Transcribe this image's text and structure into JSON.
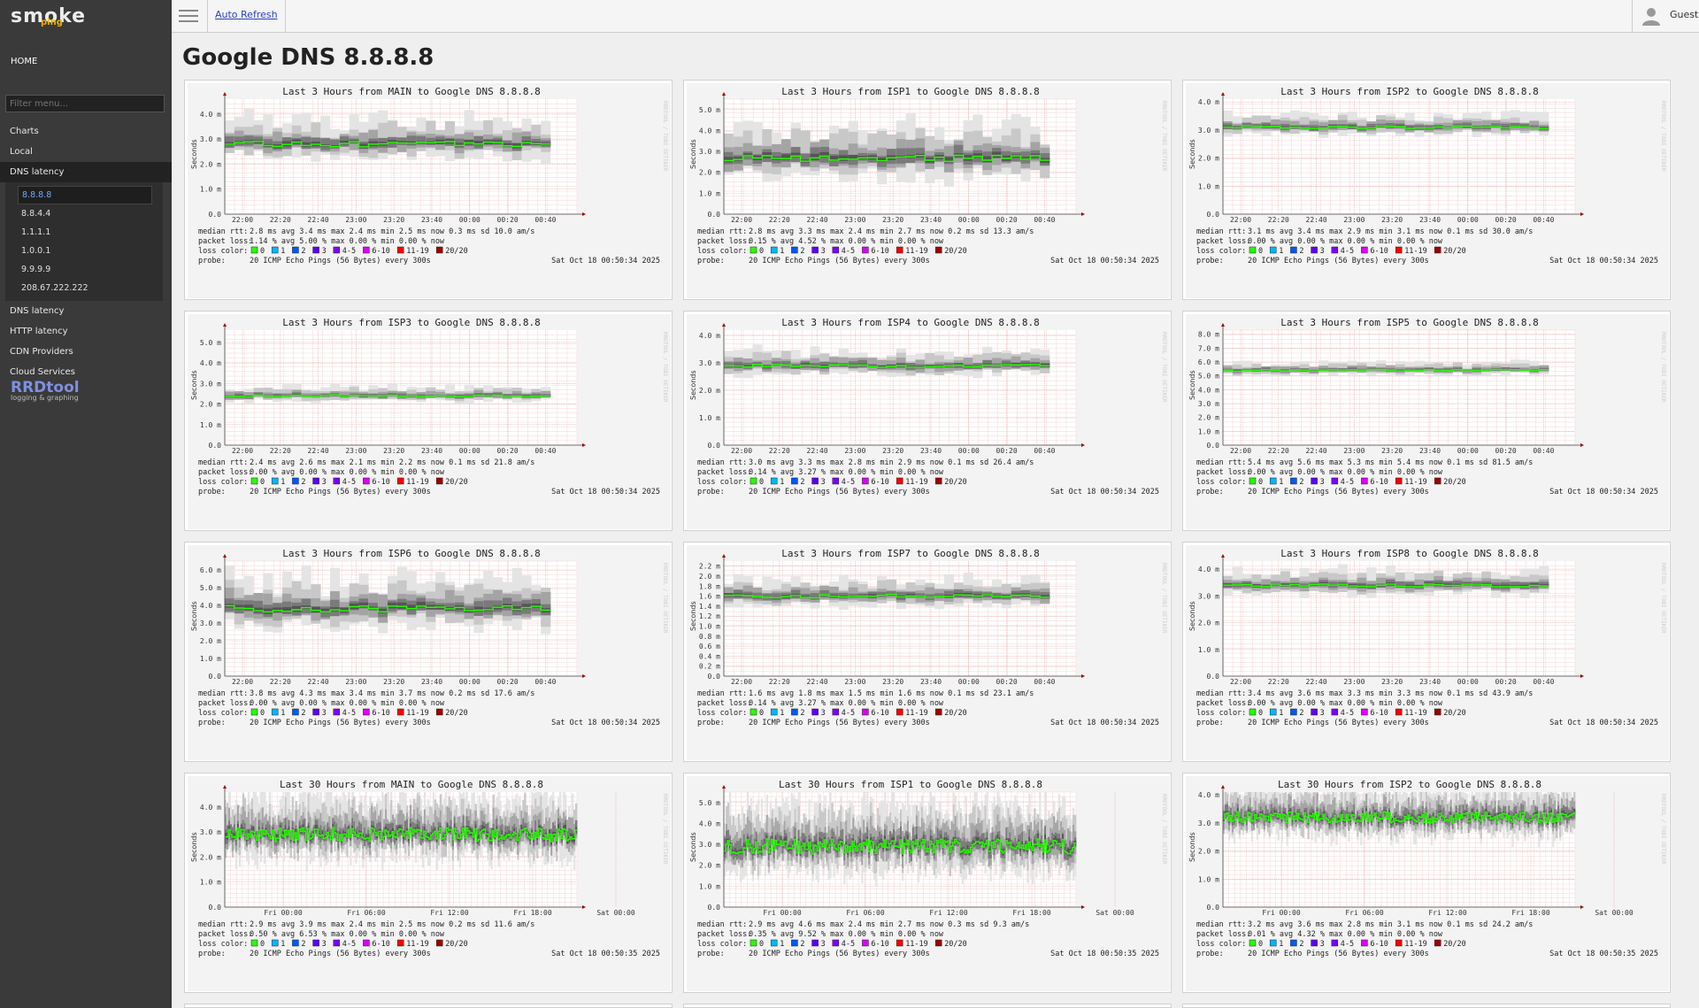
{
  "app": {
    "logo_text": "smoke",
    "logo_sub": "ping"
  },
  "sidebar": {
    "home": "HOME",
    "filter_placeholder": "Filter menu...",
    "items": [
      {
        "label": "Charts"
      },
      {
        "label": "Local"
      },
      {
        "label": "DNS latency",
        "active": true
      }
    ],
    "submenu": [
      "8.8.8.8",
      "8.8.4.4",
      "1.1.1.1",
      "1.0.0.1",
      "9.9.9.9",
      "208.67.222.222"
    ],
    "items_after": [
      {
        "label": "DNS latency"
      },
      {
        "label": "HTTP latency"
      },
      {
        "label": "CDN Providers"
      },
      {
        "label": "Cloud Services"
      }
    ],
    "rrdtool": {
      "title": "RRDtool",
      "sub": "logging & graphing"
    }
  },
  "topbar": {
    "auto_refresh": "Auto Refresh",
    "user": "Guest"
  },
  "page": {
    "title": "Google DNS 8.8.8.8"
  },
  "legend_labels": {
    "median": "median rtt:",
    "loss": "packet loss:",
    "loss_color": "loss color:",
    "probe": "probe:",
    "probe_text": "20 ICMP Echo Pings (56 Bytes) every 300s",
    "ylabel": "Seconds",
    "loss_items": [
      "0",
      "1",
      "2",
      "3",
      "4-5",
      "6-10",
      "11-19",
      "20/20"
    ],
    "loss_colors": [
      "#26ff00",
      "#00b8ff",
      "#0059ff",
      "#5e00ff",
      "#7e00ff",
      "#dd00ff",
      "#ff0000",
      "#a00000"
    ]
  },
  "x_ticks_3h": [
    "22:00",
    "22:20",
    "22:40",
    "23:00",
    "23:20",
    "23:40",
    "00:00",
    "00:20",
    "00:40"
  ],
  "x_ticks_30h": [
    "Fri 00:00",
    "Fri 06:00",
    "Fri 12:00",
    "Fri 18:00",
    "Sat 00:00"
  ],
  "charts": [
    {
      "title": "Last 3 Hours from MAIN to Google DNS 8.8.8.8",
      "yticks": [
        "4.0 m",
        "3.0 m",
        "2.0 m",
        "1.0 m",
        "0.0"
      ],
      "ymax": 4.6,
      "median": 2.8,
      "spread": 0.9,
      "range": "3h",
      "stats1": "2.8 ms avg   3.4 ms max   2.4 ms min   2.5 ms now   0.3 ms sd   10.0   am/s",
      "stats2": "1.14 % avg   5.00 % max   0.00 % min   0.00 % now",
      "date": "Sat Oct 18 00:50:34 2025"
    },
    {
      "title": "Last 3 Hours from ISP1 to Google DNS 8.8.8.8",
      "yticks": [
        "5.0 m",
        "4.0 m",
        "3.0 m",
        "2.0 m",
        "1.0 m",
        "0.0"
      ],
      "ymax": 5.5,
      "median": 2.7,
      "spread": 1.4,
      "range": "3h",
      "stats1": "2.8 ms avg   3.3 ms max   2.4 ms min   2.7 ms now   0.2 ms sd   13.3   am/s",
      "stats2": "0.15 % avg   4.52 % max   0.00 % min   0.00 % now",
      "date": "Sat Oct 18 00:50:34 2025"
    },
    {
      "title": "Last 3 Hours from ISP2 to Google DNS 8.8.8.8",
      "yticks": [
        "4.0 m",
        "3.0 m",
        "2.0 m",
        "1.0 m",
        "0.0"
      ],
      "ymax": 4.1,
      "median": 3.1,
      "spread": 0.4,
      "range": "3h",
      "stats1": "3.1 ms avg   3.4 ms max   2.9 ms min   3.1 ms now   0.1 ms sd   30.0   am/s",
      "stats2": "0.00 % avg   0.00 % max   0.00 % min   0.00 % now",
      "date": "Sat Oct 18 00:50:34 2025"
    },
    {
      "title": "Last 3 Hours from ISP3 to Google DNS 8.8.8.8",
      "yticks": [
        "5.0 m",
        "4.0 m",
        "3.0 m",
        "2.0 m",
        "1.0 m",
        "0.0"
      ],
      "ymax": 5.6,
      "median": 2.4,
      "spread": 0.4,
      "range": "3h",
      "stats1": "2.4 ms avg   2.6 ms max   2.1 ms min   2.2 ms now   0.1 ms sd   21.8   am/s",
      "stats2": "0.00 % avg   0.00 % max   0.00 % min   0.00 % now",
      "date": "Sat Oct 18 00:50:34 2025"
    },
    {
      "title": "Last 3 Hours from ISP4 to Google DNS 8.8.8.8",
      "yticks": [
        "4.0 m",
        "3.0 m",
        "2.0 m",
        "1.0 m",
        "0.0"
      ],
      "ymax": 4.2,
      "median": 2.9,
      "spread": 0.5,
      "range": "3h",
      "stats1": "3.0 ms avg   3.3 ms max   2.8 ms min   2.9 ms now   0.1 ms sd   26.4   am/s",
      "stats2": "0.14 % avg   3.27 % max   0.00 % min   0.00 % now",
      "date": "Sat Oct 18 00:50:34 2025"
    },
    {
      "title": "Last 3 Hours from ISP5 to Google DNS 8.8.8.8",
      "yticks": [
        "8.0 m",
        "7.0 m",
        "6.0 m",
        "5.0 m",
        "4.0 m",
        "3.0 m",
        "2.0 m",
        "1.0 m",
        "0.0"
      ],
      "ymax": 8.3,
      "median": 5.4,
      "spread": 0.5,
      "range": "3h",
      "stats1": "5.4 ms avg   5.6 ms max   5.3 ms min   5.4 ms now   0.1 ms sd   81.5   am/s",
      "stats2": "0.00 % avg   0.00 % max   0.00 % min   0.00 % now",
      "date": "Sat Oct 18 00:50:34 2025"
    },
    {
      "title": "Last 3 Hours from ISP6 to Google DNS 8.8.8.8",
      "yticks": [
        "6.0 m",
        "5.0 m",
        "4.0 m",
        "3.0 m",
        "2.0 m",
        "1.0 m",
        "0.0"
      ],
      "ymax": 6.5,
      "median": 3.8,
      "spread": 1.6,
      "range": "3h",
      "stats1": "3.8 ms avg   4.3 ms max   3.4 ms min   3.7 ms now   0.2 ms sd   17.6   am/s",
      "stats2": "0.00 % avg   0.00 % max   0.00 % min   0.00 % now",
      "date": "Sat Oct 18 00:50:34 2025"
    },
    {
      "title": "Last 3 Hours from ISP7 to Google DNS 8.8.8.8",
      "yticks": [
        "2.2 m",
        "2.0 m",
        "1.8 m",
        "1.6 m",
        "1.4 m",
        "1.2 m",
        "1.0 m",
        "0.8 m",
        "0.6 m",
        "0.4 m",
        "0.2 m",
        "0.0"
      ],
      "ymax": 2.3,
      "median": 1.6,
      "spread": 0.3,
      "range": "3h",
      "stats1": "1.6 ms avg   1.8 ms max   1.5 ms min   1.6 ms now   0.1 ms sd   23.1   am/s",
      "stats2": "0.14 % avg   3.27 % max   0.00 % min   0.00 % now",
      "date": "Sat Oct 18 00:50:34 2025"
    },
    {
      "title": "Last 3 Hours from ISP8 to Google DNS 8.8.8.8",
      "yticks": [
        "4.0 m",
        "3.0 m",
        "2.0 m",
        "1.0 m",
        "0.0"
      ],
      "ymax": 4.3,
      "median": 3.4,
      "spread": 0.5,
      "range": "3h",
      "stats1": "3.4 ms avg   3.6 ms max   3.3 ms min   3.3 ms now   0.1 ms sd   43.9   am/s",
      "stats2": "0.00 % avg   0.00 % max   0.00 % min   0.00 % now",
      "date": "Sat Oct 18 00:50:34 2025"
    },
    {
      "title": "Last 30 Hours from MAIN to Google DNS 8.8.8.8",
      "yticks": [
        "4.0 m",
        "3.0 m",
        "2.0 m",
        "1.0 m",
        "0.0"
      ],
      "ymax": 4.6,
      "median": 2.9,
      "spread": 1.4,
      "range": "30h",
      "stats1": "2.9 ms avg   3.9 ms max   2.4 ms min   2.5 ms now   0.2 ms sd   11.6   am/s",
      "stats2": "0.50 % avg   6.53 % max   0.00 % min   0.00 % now",
      "date": "Sat Oct 18 00:50:35 2025"
    },
    {
      "title": "Last 30 Hours from ISP1 to Google DNS 8.8.8.8",
      "yticks": [
        "5.0 m",
        "4.0 m",
        "3.0 m",
        "2.0 m",
        "1.0 m",
        "0.0"
      ],
      "ymax": 5.5,
      "median": 2.9,
      "spread": 1.8,
      "range": "30h",
      "stats1": "2.9 ms avg   4.6 ms max   2.4 ms min   2.7 ms now   0.3 ms sd   9.3    am/s",
      "stats2": "0.35 % avg   9.52 % max   0.00 % min   0.00 % now",
      "date": "Sat Oct 18 00:50:35 2025"
    },
    {
      "title": "Last 30 Hours from ISP2 to Google DNS 8.8.8.8",
      "yticks": [
        "4.0 m",
        "3.0 m",
        "2.0 m",
        "1.0 m",
        "0.0"
      ],
      "ymax": 4.1,
      "median": 3.2,
      "spread": 1.0,
      "range": "30h",
      "stats1": "3.2 ms avg   3.6 ms max   2.8 ms min   3.1 ms now   0.1 ms sd   24.2   am/s",
      "stats2": "0.01 % avg   4.32 % max   0.00 % min   0.00 % now",
      "date": "Sat Oct 18 00:50:35 2025"
    }
  ]
}
